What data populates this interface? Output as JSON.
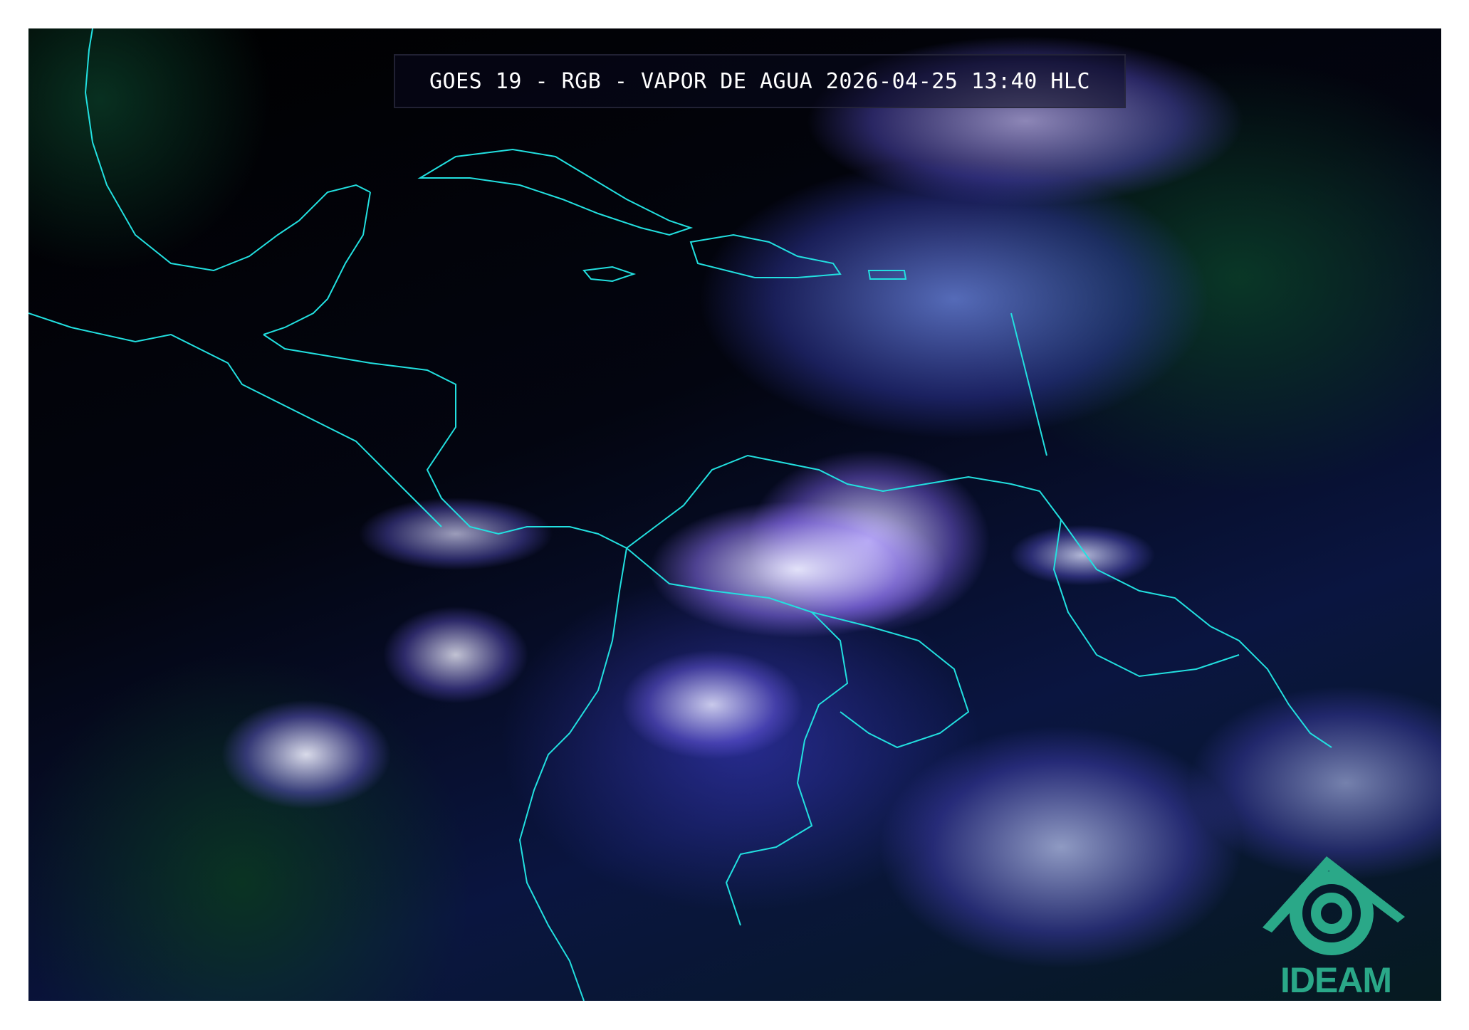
{
  "title": "GOES 19 - RGB - VAPOR DE AGUA 2026-04-25 13:40 HLC",
  "logo": {
    "text": "IDEAM",
    "color": "#2aa888"
  },
  "colors": {
    "coastline": "#22e0e0",
    "background": "#000000"
  }
}
